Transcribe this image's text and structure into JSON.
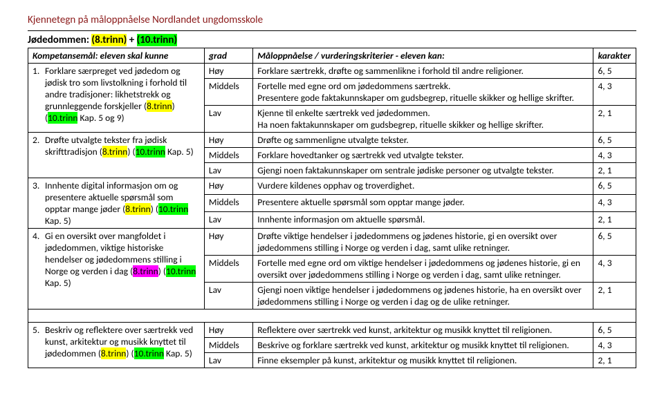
{
  "header": "Kjennetegn på måloppnåelse Nordlandet ungdomsskole",
  "section": {
    "label": "Jødedommen:",
    "t8": "(8.trinn)",
    "plus": " + ",
    "t10": "(10.trinn)"
  },
  "thead": {
    "komp": "Kompetansemål: eleven skal kunne",
    "grad": "grad",
    "mal": "Måloppnåelse / vurderingskriterier  - eleven kan:",
    "kar": "karakter"
  },
  "grades": {
    "hoy": "Høy",
    "mid": "Middels",
    "lav": "Lav"
  },
  "scores": {
    "hoy": "6, 5",
    "mid": "4, 3",
    "lav": "2, 1"
  },
  "items": [
    {
      "num": "1.",
      "runs": [
        {
          "t": "Forklare særpreget ved jødedom og jødisk tro som livstolkning i forhold til andre tradisjoner: likhetstrekk og grunnleggende forskjeller ("
        },
        {
          "t": "8.trinn",
          "hl": "hl-yellow"
        },
        {
          "t": ") ("
        },
        {
          "t": "10.trinn",
          "hl": "hl-green"
        },
        {
          "t": " Kap. 5 og 9)"
        }
      ],
      "hoy": "Forklare særtrekk, drøfte og sammenlikne i forhold til andre religioner.",
      "mid": "Fortelle med egne ord om jødedommens særtrekk.\nPresentere gode faktakunnskaper om gudsbegrep, rituelle skikker og hellige skrifter.",
      "lav": "Kjenne til enkelte særtrekk ved jødedommen.\nHa noen faktakunnskaper om gudsbegrep, rituelle skikker og hellige skrifter."
    },
    {
      "num": "2.",
      "runs": [
        {
          "t": "Drøfte utvalgte tekster fra jødisk skrifttradisjon ("
        },
        {
          "t": "8.trinn",
          "hl": "hl-yellow"
        },
        {
          "t": ") ("
        },
        {
          "t": "10.trinn",
          "hl": "hl-green"
        },
        {
          "t": " Kap. 5)"
        }
      ],
      "hoy": "Drøfte og sammenligne utvalgte tekster.",
      "mid": "Forklare hovedtanker og særtrekk ved utvalgte tekster.",
      "lav": "Gjengi noen faktakunnskaper om sentrale jødiske personer og utvalgte tekster."
    },
    {
      "num": "3.",
      "runs": [
        {
          "t": "Innhente digital informasjon om og presentere aktuelle spørsmål som opptar mange jøder ("
        },
        {
          "t": "8.trinn",
          "hl": "hl-yellow"
        },
        {
          "t": ") ("
        },
        {
          "t": "10.trinn",
          "hl": "hl-green"
        },
        {
          "t": " Kap. 5)"
        }
      ],
      "hoy": "Vurdere kildenes opphav og troverdighet.",
      "mid": "Presentere aktuelle spørsmål som opptar mange jøder.",
      "lav": "Innhente informasjon om aktuelle spørsmål."
    },
    {
      "num": "4.",
      "runs": [
        {
          "t": "Gi en oversikt over mangfoldet i jødedommen, viktige historiske hendelser og jødedommens stilling i Norge og verden i dag ("
        },
        {
          "t": "8.trinn",
          "hl": "hl-pink"
        },
        {
          "t": ") ("
        },
        {
          "t": "10.trinn",
          "hl": "hl-green"
        },
        {
          "t": " Kap. 5)"
        }
      ],
      "hoy": "Drøfte viktige hendelser i jødedommens og jødenes historie, gi en oversikt over jødedommens stilling i Norge og verden i dag, samt ulike retninger.",
      "mid": "Fortelle med egne ord om viktige hendelser i jødedommens og jødenes historie, gi en oversikt over jødedommens stilling i Norge og verden i dag, samt ulike retninger.",
      "lav": "Gjengi noen viktige hendelser i jødedommens og jødenes historie, ha en oversikt over jødedommens stilling i Norge og verden i dag og de ulike retninger."
    },
    {
      "num": "5.",
      "runs": [
        {
          "t": "Beskriv og reflektere over særtrekk ved kunst, arkitektur og musikk knyttet til jødedommen ("
        },
        {
          "t": "8.trinn",
          "hl": "hl-yellow"
        },
        {
          "t": ") ("
        },
        {
          "t": "10.trinn",
          "hl": "hl-green"
        },
        {
          "t": " Kap. 5)"
        }
      ],
      "hoy": "Reflektere over særtrekk ved kunst, arkitektur og musikk knyttet til religionen.",
      "mid": "Beskrive og forklare særtrekk ved kunst, arkitektur og musikk knyttet til religionen.",
      "lav": "Finne eksempler på kunst, arkitektur og musikk knyttet til religionen."
    }
  ]
}
